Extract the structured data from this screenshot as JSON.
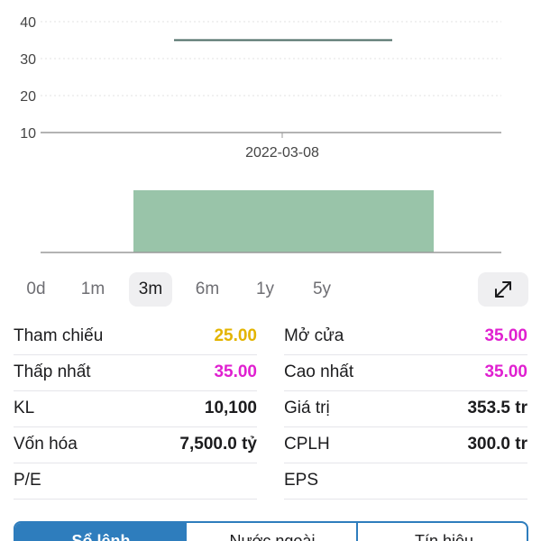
{
  "chart_data": {
    "type": "line",
    "y_ticks": [
      "40",
      "30",
      "20",
      "10"
    ],
    "ylim": [
      10,
      40
    ],
    "x_tick_label": "2022-03-08",
    "series": [
      {
        "values": [
          35,
          35
        ]
      }
    ],
    "volume": {
      "type": "bar",
      "values": [
        10100
      ]
    },
    "colors": {
      "line": "#4a6a63",
      "volume_bar": "#99c4a9",
      "grid": "#e3e3e3",
      "axis": "#9a9a9a"
    }
  },
  "periods": {
    "items": [
      "0d",
      "1m",
      "3m",
      "6m",
      "1y",
      "5y"
    ],
    "active": "3m"
  },
  "expand_icon": "expand-arrows-icon",
  "stats": {
    "ref_label": "Tham chiếu",
    "ref_value": "25.00",
    "ref_color": "#e3b400",
    "open_label": "Mở cửa",
    "open_value": "35.00",
    "open_color": "#e020d0",
    "low_label": "Thấp nhất",
    "low_value": "35.00",
    "low_color": "#e020d0",
    "high_label": "Cao nhất",
    "high_value": "35.00",
    "high_color": "#e020d0",
    "volume_label": "KL",
    "volume_value": "10,100",
    "turnover_label": "Giá trị",
    "turnover_value": "353.5 tr",
    "mcap_label": "Vốn hóa",
    "mcap_value": "7,500.0 tỷ",
    "shares_label": "CPLH",
    "shares_value": "300.0 tr",
    "pe_label": "P/E",
    "pe_value": "",
    "eps_label": "EPS",
    "eps_value": ""
  },
  "bottom_tabs": {
    "items": [
      "Sổ lệnh",
      "Nước ngoài",
      "Tín hiệu"
    ],
    "active": "Sổ lệnh",
    "accent": "#2e7dbd"
  }
}
